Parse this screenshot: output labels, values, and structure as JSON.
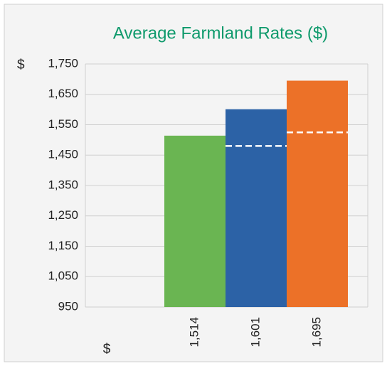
{
  "chart_data": {
    "type": "bar",
    "title": "Average Farmland Rates ($)",
    "y_prefix": "$",
    "categories": [
      "$",
      null,
      null,
      null
    ],
    "values": [
      null,
      1514,
      1601,
      1695
    ],
    "value_labels": [
      null,
      "1,514",
      "1,601",
      "1,695"
    ],
    "colors": [
      null,
      "#6ab552",
      "#2c62a6",
      "#ec7128"
    ],
    "dashed_values": [
      null,
      null,
      1480,
      1525
    ],
    "ylim": [
      950,
      1750
    ],
    "yticks": [
      950,
      {
        "value": 1050,
        "label": "1,050"
      },
      {
        "value": 1150,
        "label": "1,150"
      },
      {
        "value": 1250,
        "label": "1,250"
      },
      {
        "value": 1350,
        "label": "1,350"
      },
      {
        "value": 1450,
        "label": "1,450"
      },
      {
        "value": 1550,
        "label": "1,550"
      },
      {
        "value": 1650,
        "label": "1,650"
      },
      {
        "value": 1750,
        "label": "1,750"
      }
    ],
    "grid": true
  }
}
